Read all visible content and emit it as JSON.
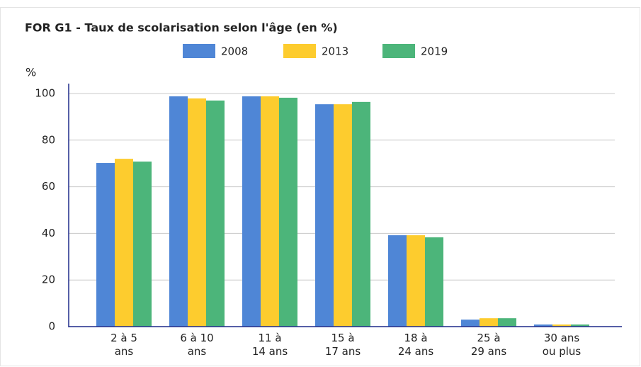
{
  "chart_data": {
    "type": "bar",
    "title": "FOR G1 - Taux de scolarisation selon l'âge (en %)",
    "y_label": "%",
    "categories": [
      "2 à 5\nans",
      "6 à 10\nans",
      "11 à\n14 ans",
      "15 à\n17 ans",
      "18 à\n24 ans",
      "25 à\n29 ans",
      "30 ans\nou plus"
    ],
    "series": [
      {
        "name": "2008",
        "color": "#4f86d6",
        "values": [
          70.2,
          98.8,
          98.8,
          95.4,
          39.2,
          3.0,
          0.9
        ]
      },
      {
        "name": "2013",
        "color": "#fdcc2e",
        "values": [
          72.0,
          97.9,
          98.8,
          95.4,
          39.2,
          3.6,
          0.9
        ]
      },
      {
        "name": "2019",
        "color": "#4cb57a",
        "values": [
          70.8,
          97.0,
          98.2,
          96.4,
          38.3,
          3.6,
          0.9
        ]
      }
    ],
    "ylim": [
      0,
      100
    ],
    "yticks": [
      0,
      20,
      40,
      60,
      80,
      100
    ],
    "grid": true
  }
}
